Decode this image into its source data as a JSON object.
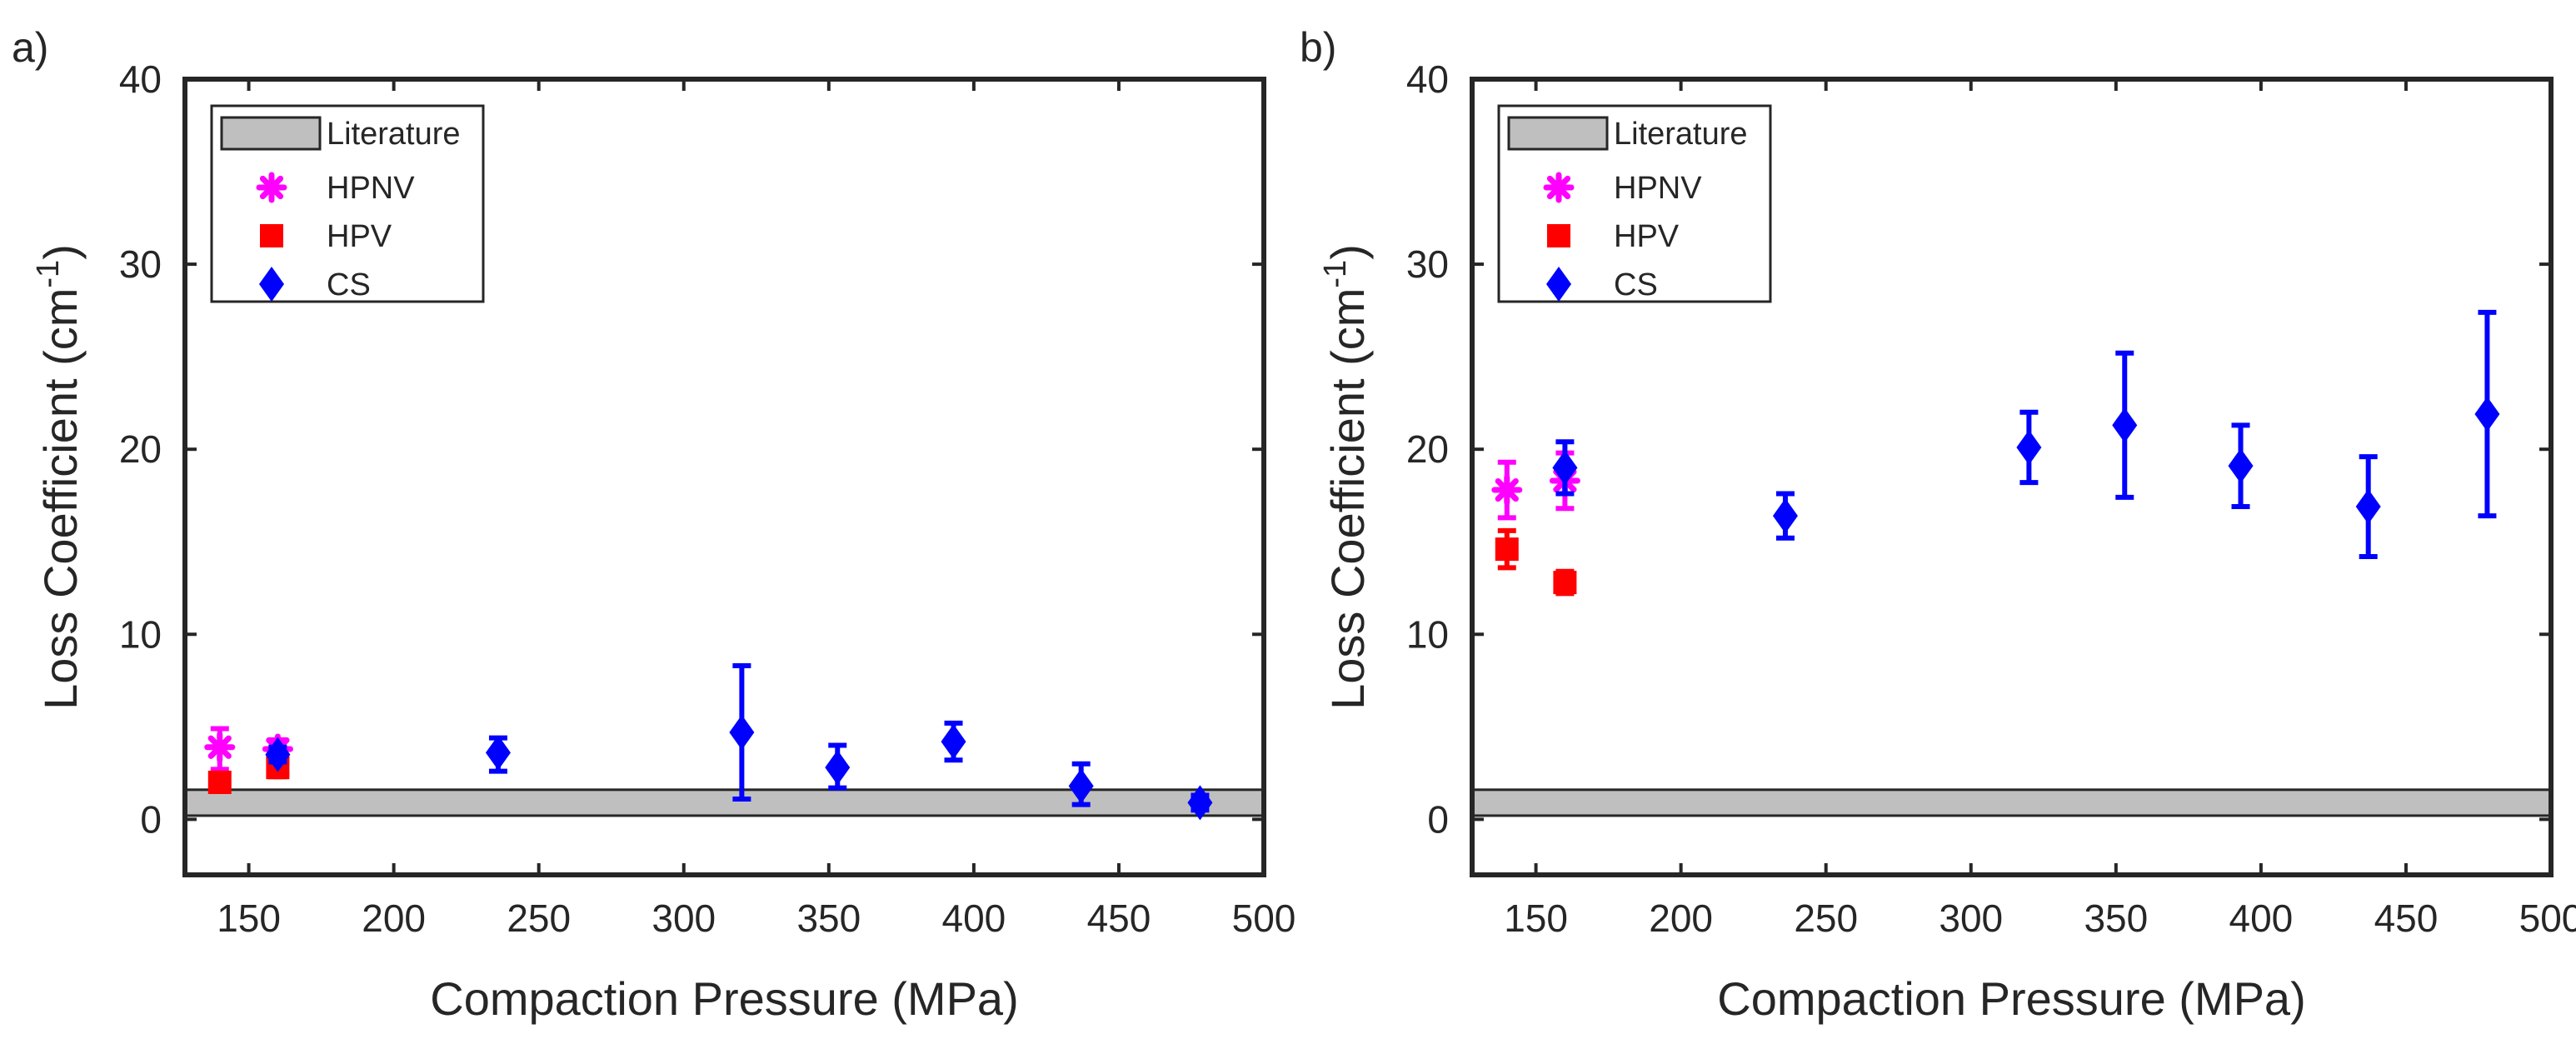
{
  "chart_data": [
    {
      "panel_label": "a)",
      "type": "scatter",
      "xlabel": "Compaction Pressure (MPa)",
      "ylabel": "Loss Coefficient (cm",
      "ylabel_superscript": "-1",
      "ylabel_suffix": ")",
      "xlim": [
        128,
        500
      ],
      "ylim": [
        -3,
        40
      ],
      "xticks": [
        150,
        200,
        250,
        300,
        350,
        400,
        450,
        500
      ],
      "yticks": [
        0,
        10,
        20,
        30,
        40
      ],
      "grid": false,
      "legend_position": "top-left",
      "literature_band": {
        "name": "Literature",
        "y_low": 0.2,
        "y_high": 1.6,
        "color": "#bfbfbf"
      },
      "series": [
        {
          "name": "HPNV",
          "marker": "asterisk",
          "color": "#ff00ff",
          "points": [
            {
              "x": 140,
              "y": 3.9,
              "err_low": 1.2,
              "err_high": 1.0
            },
            {
              "x": 160,
              "y": 3.8,
              "err_low": 0.5,
              "err_high": 0.5
            }
          ]
        },
        {
          "name": "HPV",
          "marker": "square",
          "color": "#ff0000",
          "points": [
            {
              "x": 140,
              "y": 2.0,
              "err_low": 0.5,
              "err_high": 0.5
            },
            {
              "x": 160,
              "y": 2.8,
              "err_low": 0.5,
              "err_high": 0.5
            }
          ]
        },
        {
          "name": "CS",
          "marker": "diamond",
          "color": "#0000ff",
          "points": [
            {
              "x": 160,
              "y": 3.5,
              "err_low": 0.4,
              "err_high": 0.4
            },
            {
              "x": 236,
              "y": 3.6,
              "err_low": 1.0,
              "err_high": 0.8
            },
            {
              "x": 320,
              "y": 4.7,
              "err_low": 3.6,
              "err_high": 3.6
            },
            {
              "x": 353,
              "y": 2.8,
              "err_low": 1.1,
              "err_high": 1.2
            },
            {
              "x": 393,
              "y": 4.2,
              "err_low": 1.0,
              "err_high": 1.0
            },
            {
              "x": 437,
              "y": 1.8,
              "err_low": 1.0,
              "err_high": 1.2
            },
            {
              "x": 478,
              "y": 0.9,
              "err_low": 0.4,
              "err_high": 0.4
            }
          ]
        }
      ]
    },
    {
      "panel_label": "b)",
      "type": "scatter",
      "xlabel": "Compaction Pressure (MPa)",
      "ylabel": "Loss Coefficient (cm",
      "ylabel_superscript": "-1",
      "ylabel_suffix": ")",
      "xlim": [
        128,
        500
      ],
      "ylim": [
        -3,
        40
      ],
      "xticks": [
        150,
        200,
        250,
        300,
        350,
        400,
        450,
        500
      ],
      "yticks": [
        0,
        10,
        20,
        30,
        40
      ],
      "grid": false,
      "legend_position": "top-left",
      "literature_band": {
        "name": "Literature",
        "y_low": 0.2,
        "y_high": 1.6,
        "color": "#bfbfbf"
      },
      "series": [
        {
          "name": "HPNV",
          "marker": "asterisk",
          "color": "#ff00ff",
          "points": [
            {
              "x": 140,
              "y": 17.8,
              "err_low": 1.5,
              "err_high": 1.5
            },
            {
              "x": 160,
              "y": 18.3,
              "err_low": 1.5,
              "err_high": 1.5
            }
          ]
        },
        {
          "name": "HPV",
          "marker": "square",
          "color": "#ff0000",
          "points": [
            {
              "x": 140,
              "y": 14.6,
              "err_low": 1.0,
              "err_high": 1.0
            },
            {
              "x": 160,
              "y": 12.8,
              "err_low": 0.6,
              "err_high": 0.6
            }
          ]
        },
        {
          "name": "CS",
          "marker": "diamond",
          "color": "#0000ff",
          "points": [
            {
              "x": 160,
              "y": 19.0,
              "err_low": 1.4,
              "err_high": 1.4
            },
            {
              "x": 236,
              "y": 16.4,
              "err_low": 1.2,
              "err_high": 1.2
            },
            {
              "x": 320,
              "y": 20.1,
              "err_low": 1.9,
              "err_high": 1.9
            },
            {
              "x": 353,
              "y": 21.3,
              "err_low": 3.9,
              "err_high": 3.9
            },
            {
              "x": 393,
              "y": 19.1,
              "err_low": 2.2,
              "err_high": 2.2
            },
            {
              "x": 437,
              "y": 16.9,
              "err_low": 2.7,
              "err_high": 2.7
            },
            {
              "x": 478,
              "y": 21.9,
              "err_low": 5.5,
              "err_high": 5.5
            }
          ]
        }
      ]
    }
  ]
}
